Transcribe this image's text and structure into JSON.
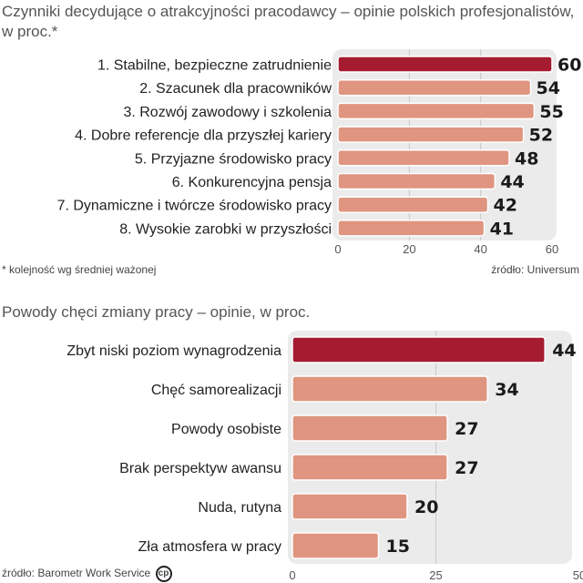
{
  "chart_data": [
    {
      "type": "bar",
      "title": "Czynniki decydujące o atrakcyjności pracodawcy – opinie polskich profesjonalistów, w proc.*",
      "categories": [
        "1. Stabilne, bezpieczne zatrudnienie",
        "2. Szacunek dla pracowników",
        "3. Rozwój zawodowy i szkolenia",
        "4. Dobre referencje dla przyszłej kariery",
        "5. Przyjazne środowisko pracy",
        "6. Konkurencyjna pensja",
        "7.  Dynamiczne i twórcze środowisko pracy",
        "8. Wysokie zarobki w przyszłości"
      ],
      "values": [
        60,
        54,
        55,
        52,
        48,
        44,
        42,
        41
      ],
      "value_labels": [
        "60",
        "54",
        "55",
        "52",
        "48",
        "44",
        "42",
        "41"
      ],
      "xlim": [
        0,
        60
      ],
      "ticks": [
        "0",
        "20",
        "40",
        "60"
      ],
      "tick_values": [
        0,
        20,
        40,
        60
      ],
      "footnote": "* kolejność wg średniej ważonej",
      "source": "źródło: Universum",
      "grid": true
    },
    {
      "type": "bar",
      "title": "Powody chęci zmiany pracy – opinie, w proc.",
      "categories": [
        "Zbyt niski poziom wynagrodzenia",
        "Chęć samorealizacji",
        "Powody osobiste",
        "Brak perspektyw awansu",
        "Nuda, rutyna",
        "Zła atmosfera w pracy"
      ],
      "values": [
        44,
        34,
        27,
        27,
        20,
        15
      ],
      "value_labels": [
        "44",
        "34",
        "27",
        "27",
        "20",
        "15"
      ],
      "xlim": [
        0,
        50
      ],
      "ticks": [
        "0",
        "25",
        "50"
      ],
      "tick_values": [
        0,
        25,
        50
      ],
      "source": "źródło: Barometr Work Service",
      "grid": true
    }
  ],
  "colors": {
    "highlight": "#a51c30",
    "bar": "#df9580",
    "panel": "#ebebeb",
    "grid": "#c9c9c9"
  },
  "logo_text": "CP"
}
